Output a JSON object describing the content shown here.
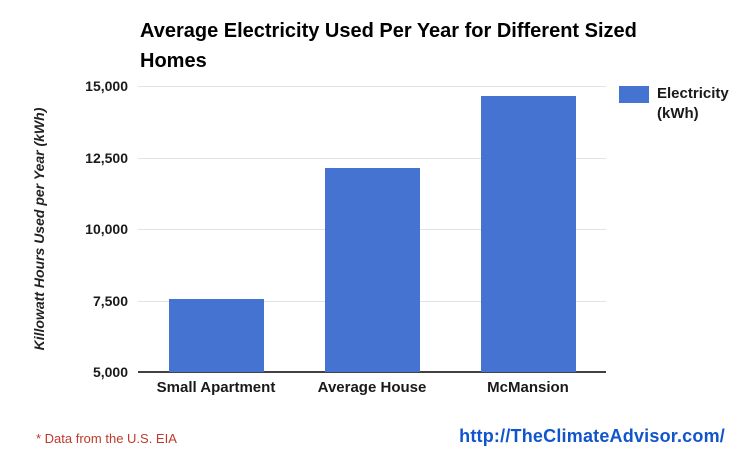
{
  "page": {
    "background": "#ffffff"
  },
  "header": {
    "title": "Average Electricity Used Per Year for Different Sized Homes"
  },
  "legend": {
    "label": "Electricity (kWh)",
    "swatch_color": "#4573d1"
  },
  "footer": {
    "note": "* Data from the U.S. EIA",
    "note_color": "#c0392b",
    "link": "http://TheClimateAdvisor.com/",
    "link_color": "#1155cc"
  },
  "chart_data": {
    "type": "bar",
    "title": "Average Electricity Used Per Year for Different Sized Homes",
    "categories": [
      "Small Apartment",
      "Average House",
      "McMansion"
    ],
    "series": [
      {
        "name": "Electricity (kWh)",
        "values": [
          7550,
          12150,
          14650
        ],
        "color": "#4573d1"
      }
    ],
    "xlabel": "",
    "ylabel": "Killowatt Hours Used per Year (kWh)",
    "ylim": [
      5000,
      15000
    ],
    "yticks": [
      5000,
      7500,
      10000,
      12500,
      15000
    ],
    "ytick_labels": [
      "5,000",
      "7,500",
      "10,000",
      "12,500",
      "15,000"
    ],
    "grid": true,
    "legend_position": "right",
    "bar_color": "#4573d1"
  }
}
